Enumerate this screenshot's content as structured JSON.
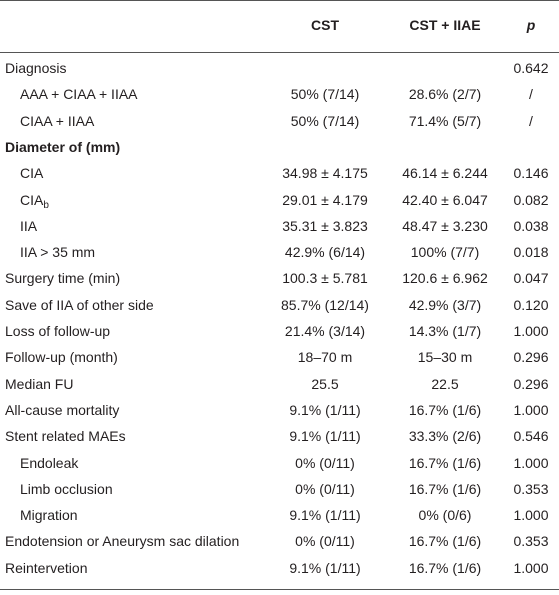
{
  "table": {
    "header": {
      "columns": [
        "CST",
        "CST + IIAE",
        "p"
      ]
    },
    "rows": [
      {
        "label": "Diagnosis",
        "p": "0.642",
        "children": [
          {
            "label": "AAA + CIAA + IIAA",
            "cst": "50% (7/14)",
            "iiae": "28.6% (2/7)",
            "p": "/"
          },
          {
            "label": "CIAA + IIAA",
            "cst": "50% (7/14)",
            "iiae": "71.4% (5/7)",
            "p": "/"
          }
        ]
      },
      {
        "label": "Diameter of (mm)",
        "children": [
          {
            "label": "CIA",
            "cst": "34.98 ± 4.175",
            "iiae": "46.14 ± 6.244",
            "p": "0.146"
          },
          {
            "label": "CIA",
            "sub": "b",
            "cst": "29.01 ± 4.179",
            "iiae": "42.40 ± 6.047",
            "p": "0.082"
          },
          {
            "label": "IIA",
            "cst": "35.31 ± 3.823",
            "iiae": "48.47 ± 3.230",
            "p": "0.038"
          },
          {
            "label": "IIA > 35 mm",
            "cst": "42.9% (6/14)",
            "iiae": "100% (7/7)",
            "p": "0.018"
          }
        ]
      },
      {
        "label": "Surgery time (min)",
        "cst": "100.3 ± 5.781",
        "iiae": "120.6 ± 6.962",
        "p": "0.047"
      },
      {
        "label": "Save of IIA of other side",
        "cst": "85.7% (12/14)",
        "iiae": "42.9% (3/7)",
        "p": "0.120"
      },
      {
        "label": "Loss of follow-up",
        "cst": "21.4% (3/14)",
        "iiae": "14.3% (1/7)",
        "p": "1.000"
      },
      {
        "label": "Follow-up (month)",
        "cst": "18–70 m",
        "iiae": "15–30 m",
        "p": "0.296"
      },
      {
        "label": "Median FU",
        "cst": "25.5",
        "iiae": "22.5",
        "p": "0.296"
      },
      {
        "label": "All-cause mortality",
        "cst": "9.1% (1/11)",
        "iiae": "16.7% (1/6)",
        "p": "1.000"
      },
      {
        "label": "Stent related MAEs",
        "cst": "9.1% (1/11)",
        "iiae": "33.3% (2/6)",
        "p": "0.546",
        "children": [
          {
            "label": "Endoleak",
            "cst": "0% (0/11)",
            "iiae": "16.7% (1/6)",
            "p": "1.000"
          },
          {
            "label": "Limb occlusion",
            "cst": "0% (0/11)",
            "iiae": "16.7% (1/6)",
            "p": "0.353"
          },
          {
            "label": "Migration",
            "cst": "9.1% (1/11)",
            "iiae": "0% (0/6)",
            "p": "1.000"
          }
        ]
      },
      {
        "label": "Endotension or Aneurysm sac dilation",
        "cst": "0% (0/11)",
        "iiae": "16.7% (1/6)",
        "p": "0.353"
      },
      {
        "label": "Reintervetion",
        "cst": "9.1% (1/11)",
        "iiae": "16.7% (1/6)",
        "p": "1.000"
      }
    ]
  }
}
